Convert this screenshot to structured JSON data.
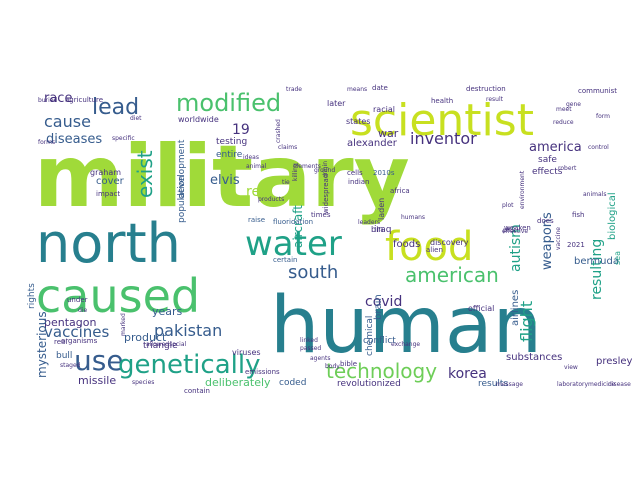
{
  "colors": {
    "background": "#ffffff",
    "lime": "#a0da39",
    "green": "#4ac16d",
    "teal": "#1fa187",
    "blueteal": "#277f8e",
    "slate": "#365c8d",
    "indigo": "#46327e",
    "purple": "#440154",
    "yellow": "#c8e020",
    "mint": "#6ece58"
  },
  "words": [
    {
      "text": "military",
      "c": "lime"
    },
    {
      "text": "human",
      "c": "blueteal"
    },
    {
      "text": "north",
      "c": "blueteal"
    },
    {
      "text": "caused",
      "c": "green"
    },
    {
      "text": "scientist",
      "c": "yellow"
    },
    {
      "text": "food",
      "c": "yellow"
    },
    {
      "text": "water",
      "c": "teal"
    },
    {
      "text": "use",
      "c": "slate"
    },
    {
      "text": "genetically",
      "c": "teal"
    },
    {
      "text": "modified",
      "c": "green"
    },
    {
      "text": "lead",
      "c": "slate"
    },
    {
      "text": "american",
      "c": "green"
    },
    {
      "text": "technology",
      "c": "mint"
    },
    {
      "text": "south",
      "c": "slate"
    },
    {
      "text": "exist",
      "c": "teal"
    },
    {
      "text": "cause",
      "c": "slate"
    },
    {
      "text": "pakistan",
      "c": "slate"
    },
    {
      "text": "vaccines",
      "c": "slate"
    },
    {
      "text": "inventor",
      "c": "indigo"
    },
    {
      "text": "covid",
      "c": "indigo"
    },
    {
      "text": "korea",
      "c": "indigo"
    },
    {
      "text": "flight",
      "c": "teal"
    },
    {
      "text": "autism",
      "c": "teal"
    },
    {
      "text": "weapons",
      "c": "slate"
    },
    {
      "text": "resulting",
      "c": "teal"
    },
    {
      "text": "america",
      "c": "indigo"
    },
    {
      "text": "race",
      "c": "indigo"
    },
    {
      "text": "diseases",
      "c": "slate"
    },
    {
      "text": "elvis",
      "c": "slate"
    },
    {
      "text": "aircraft",
      "c": "teal"
    },
    {
      "text": "red",
      "c": "lime"
    },
    {
      "text": "19",
      "c": "indigo"
    },
    {
      "text": "war",
      "c": "indigo"
    },
    {
      "text": "alexander",
      "c": "indigo"
    },
    {
      "text": "missile",
      "c": "indigo"
    },
    {
      "text": "pentagon",
      "c": "indigo"
    },
    {
      "text": "product",
      "c": "slate"
    },
    {
      "text": "deliberately",
      "c": "green"
    },
    {
      "text": "revolutionized",
      "c": "indigo"
    },
    {
      "text": "years",
      "c": "slate"
    },
    {
      "text": "presley",
      "c": "indigo"
    },
    {
      "text": "airlines",
      "c": "slate"
    },
    {
      "text": "bermuda",
      "c": "slate"
    },
    {
      "text": "substances",
      "c": "indigo"
    },
    {
      "text": "triangle",
      "c": "indigo"
    },
    {
      "text": "mysterious",
      "c": "slate"
    },
    {
      "text": "results",
      "c": "slate"
    },
    {
      "text": "brain",
      "c": "slate"
    },
    {
      "text": "conflict",
      "c": "slate"
    },
    {
      "text": "chemical",
      "c": "slate"
    },
    {
      "text": "foods",
      "c": "indigo"
    },
    {
      "text": "safe",
      "c": "indigo"
    },
    {
      "text": "effects",
      "c": "indigo"
    },
    {
      "text": "biological",
      "c": "teal"
    },
    {
      "text": "iraq",
      "c": "indigo"
    },
    {
      "text": "testing",
      "c": "indigo"
    },
    {
      "text": "entire",
      "c": "slate"
    },
    {
      "text": "development",
      "c": "slate"
    },
    {
      "text": "population",
      "c": "slate"
    },
    {
      "text": "worldwide",
      "c": "indigo"
    },
    {
      "text": "states",
      "c": "indigo"
    },
    {
      "text": "racial",
      "c": "indigo"
    },
    {
      "text": "later",
      "c": "indigo"
    },
    {
      "text": "cover",
      "c": "slate"
    },
    {
      "text": "graham",
      "c": "indigo"
    },
    {
      "text": "bull",
      "c": "slate"
    },
    {
      "text": "coded",
      "c": "slate"
    },
    {
      "text": "viruses",
      "c": "indigo"
    },
    {
      "text": "official",
      "c": "indigo"
    },
    {
      "text": "sea",
      "c": "teal"
    },
    {
      "text": "bin",
      "c": "indigo"
    },
    {
      "text": "laden",
      "c": "indigo"
    },
    {
      "text": "cells",
      "c": "indigo"
    },
    {
      "text": "indian",
      "c": "indigo"
    },
    {
      "text": "2010s",
      "c": "slate"
    },
    {
      "text": "discovery",
      "c": "indigo"
    },
    {
      "text": "africa",
      "c": "indigo"
    },
    {
      "text": "alien",
      "c": "indigo"
    },
    {
      "text": "rights",
      "c": "slate"
    },
    {
      "text": "date",
      "c": "indigo"
    },
    {
      "text": "destruction",
      "c": "indigo"
    },
    {
      "text": "communist",
      "c": "indigo"
    },
    {
      "text": "health",
      "c": "indigo"
    },
    {
      "text": "agriculture",
      "c": "indigo"
    },
    {
      "text": "fluoridation",
      "c": "slate"
    },
    {
      "text": "raise",
      "c": "slate"
    },
    {
      "text": "widespread",
      "c": "indigo"
    },
    {
      "text": "organisms",
      "c": "indigo"
    },
    {
      "text": "certain",
      "c": "slate"
    },
    {
      "text": "emissions",
      "c": "indigo"
    },
    {
      "text": "contain",
      "c": "indigo"
    },
    {
      "text": "species",
      "c": "indigo"
    },
    {
      "text": "bible",
      "c": "indigo"
    },
    {
      "text": "impact",
      "c": "indigo"
    },
    {
      "text": "specific",
      "c": "indigo"
    },
    {
      "text": "weaken",
      "c": "indigo"
    },
    {
      "text": "2021",
      "c": "indigo"
    },
    {
      "text": "times",
      "c": "indigo"
    },
    {
      "text": "does",
      "c": "indigo"
    },
    {
      "text": "fish",
      "c": "indigo"
    },
    {
      "text": "real",
      "c": "indigo"
    },
    {
      "text": "agents",
      "c": "indigo"
    },
    {
      "text": "exchange",
      "c": "indigo"
    },
    {
      "text": "staged",
      "c": "indigo"
    },
    {
      "text": "allowedsocial",
      "c": "indigo"
    },
    {
      "text": "under",
      "c": "indigo"
    },
    {
      "text": "crashed",
      "c": "indigo"
    },
    {
      "text": "marked",
      "c": "indigo"
    },
    {
      "text": "laboratory",
      "c": "indigo"
    },
    {
      "text": "disease",
      "c": "indigo"
    },
    {
      "text": "products",
      "c": "indigo"
    },
    {
      "text": "trade",
      "c": "indigo"
    },
    {
      "text": "means",
      "c": "indigo"
    },
    {
      "text": "result",
      "c": "indigo"
    },
    {
      "text": "meet",
      "c": "indigo"
    },
    {
      "text": "reduce",
      "c": "indigo"
    },
    {
      "text": "plot",
      "c": "indigo"
    },
    {
      "text": "die",
      "c": "indigo"
    },
    {
      "text": "diet",
      "c": "indigo"
    },
    {
      "text": "leaders",
      "c": "indigo"
    },
    {
      "text": "humans",
      "c": "indigo"
    },
    {
      "text": "passed",
      "c": "indigo"
    },
    {
      "text": "linked",
      "c": "indigo"
    },
    {
      "text": "pilot",
      "c": "indigo"
    },
    {
      "text": "view",
      "c": "indigo"
    },
    {
      "text": "medicine",
      "c": "indigo"
    },
    {
      "text": "message",
      "c": "indigo"
    },
    {
      "text": "effective",
      "c": "indigo"
    },
    {
      "text": "environment",
      "c": "indigo"
    },
    {
      "text": "robert",
      "c": "indigo"
    },
    {
      "text": "control",
      "c": "indigo"
    },
    {
      "text": "ground",
      "c": "indigo"
    },
    {
      "text": "elements",
      "c": "indigo"
    },
    {
      "text": "animal",
      "c": "indigo"
    },
    {
      "text": "buried",
      "c": "indigo"
    },
    {
      "text": "tie",
      "c": "indigo"
    },
    {
      "text": "body",
      "c": "indigo"
    },
    {
      "text": "killing",
      "c": "indigo"
    },
    {
      "text": "origin",
      "c": "indigo"
    },
    {
      "text": "ideas",
      "c": "indigo"
    },
    {
      "text": "claims",
      "c": "indigo"
    },
    {
      "text": "forms",
      "c": "indigo"
    },
    {
      "text": "vaccine",
      "c": "indigo"
    },
    {
      "text": "animals",
      "c": "indigo"
    },
    {
      "text": "form",
      "c": "indigo"
    },
    {
      "text": "gene",
      "c": "indigo"
    }
  ]
}
